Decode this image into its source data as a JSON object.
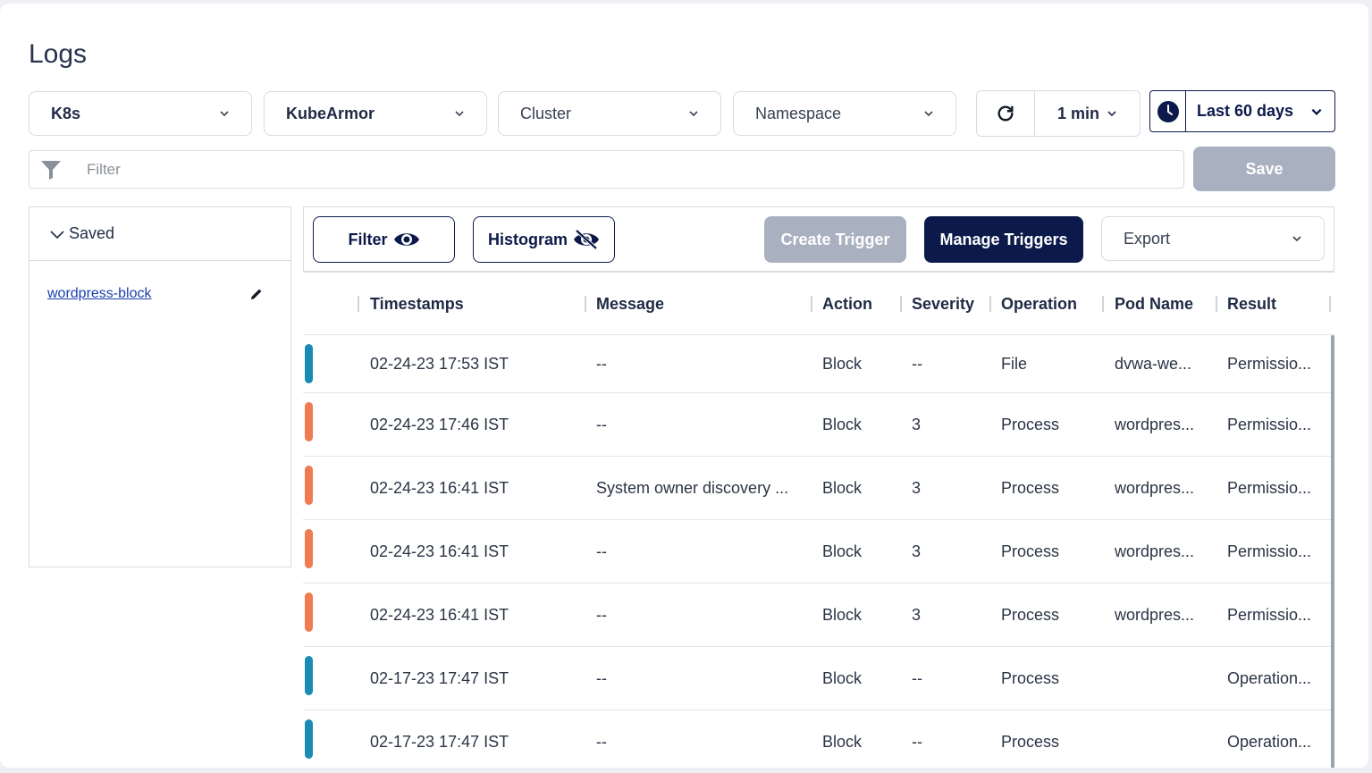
{
  "page": {
    "title": "Logs"
  },
  "filters": {
    "source": "K8s",
    "engine": "KubeArmor",
    "cluster": "Cluster",
    "namespace": "Namespace",
    "interval": "1 min",
    "range": "Last 60 days"
  },
  "search": {
    "placeholder": "Filter",
    "save_label": "Save"
  },
  "saved": {
    "header": "Saved",
    "items": [
      "wordpress-block"
    ]
  },
  "toolbar": {
    "filter_label": "Filter",
    "histogram_label": "Histogram",
    "create_trigger_label": "Create Trigger",
    "manage_triggers_label": "Manage Triggers",
    "export_label": "Export"
  },
  "table": {
    "columns": [
      "Timestamps",
      "Message",
      "Action",
      "Severity",
      "Operation",
      "Pod Name",
      "Result"
    ],
    "rows": [
      {
        "color": "#1a8bb5",
        "timestamp": "02-24-23 17:53 IST",
        "message": "--",
        "action": "Block",
        "severity": "--",
        "operation": "File",
        "pod": "dvwa-we...",
        "result": "Permissio..."
      },
      {
        "color": "#f07b52",
        "timestamp": "02-24-23 17:46 IST",
        "message": "--",
        "action": "Block",
        "severity": "3",
        "operation": "Process",
        "pod": "wordpres...",
        "result": "Permissio..."
      },
      {
        "color": "#f07b52",
        "timestamp": "02-24-23 16:41 IST",
        "message": "System owner discovery ...",
        "action": "Block",
        "severity": "3",
        "operation": "Process",
        "pod": "wordpres...",
        "result": "Permissio..."
      },
      {
        "color": "#f07b52",
        "timestamp": "02-24-23 16:41 IST",
        "message": "--",
        "action": "Block",
        "severity": "3",
        "operation": "Process",
        "pod": "wordpres...",
        "result": "Permissio..."
      },
      {
        "color": "#f07b52",
        "timestamp": "02-24-23 16:41 IST",
        "message": "--",
        "action": "Block",
        "severity": "3",
        "operation": "Process",
        "pod": "wordpres...",
        "result": "Permissio..."
      },
      {
        "color": "#1a8bb5",
        "timestamp": "02-17-23 17:47 IST",
        "message": "--",
        "action": "Block",
        "severity": "--",
        "operation": "Process",
        "pod": "",
        "result": "Operation..."
      },
      {
        "color": "#1a8bb5",
        "timestamp": "02-17-23 17:47 IST",
        "message": "--",
        "action": "Block",
        "severity": "--",
        "operation": "Process",
        "pod": "",
        "result": "Operation..."
      }
    ]
  }
}
